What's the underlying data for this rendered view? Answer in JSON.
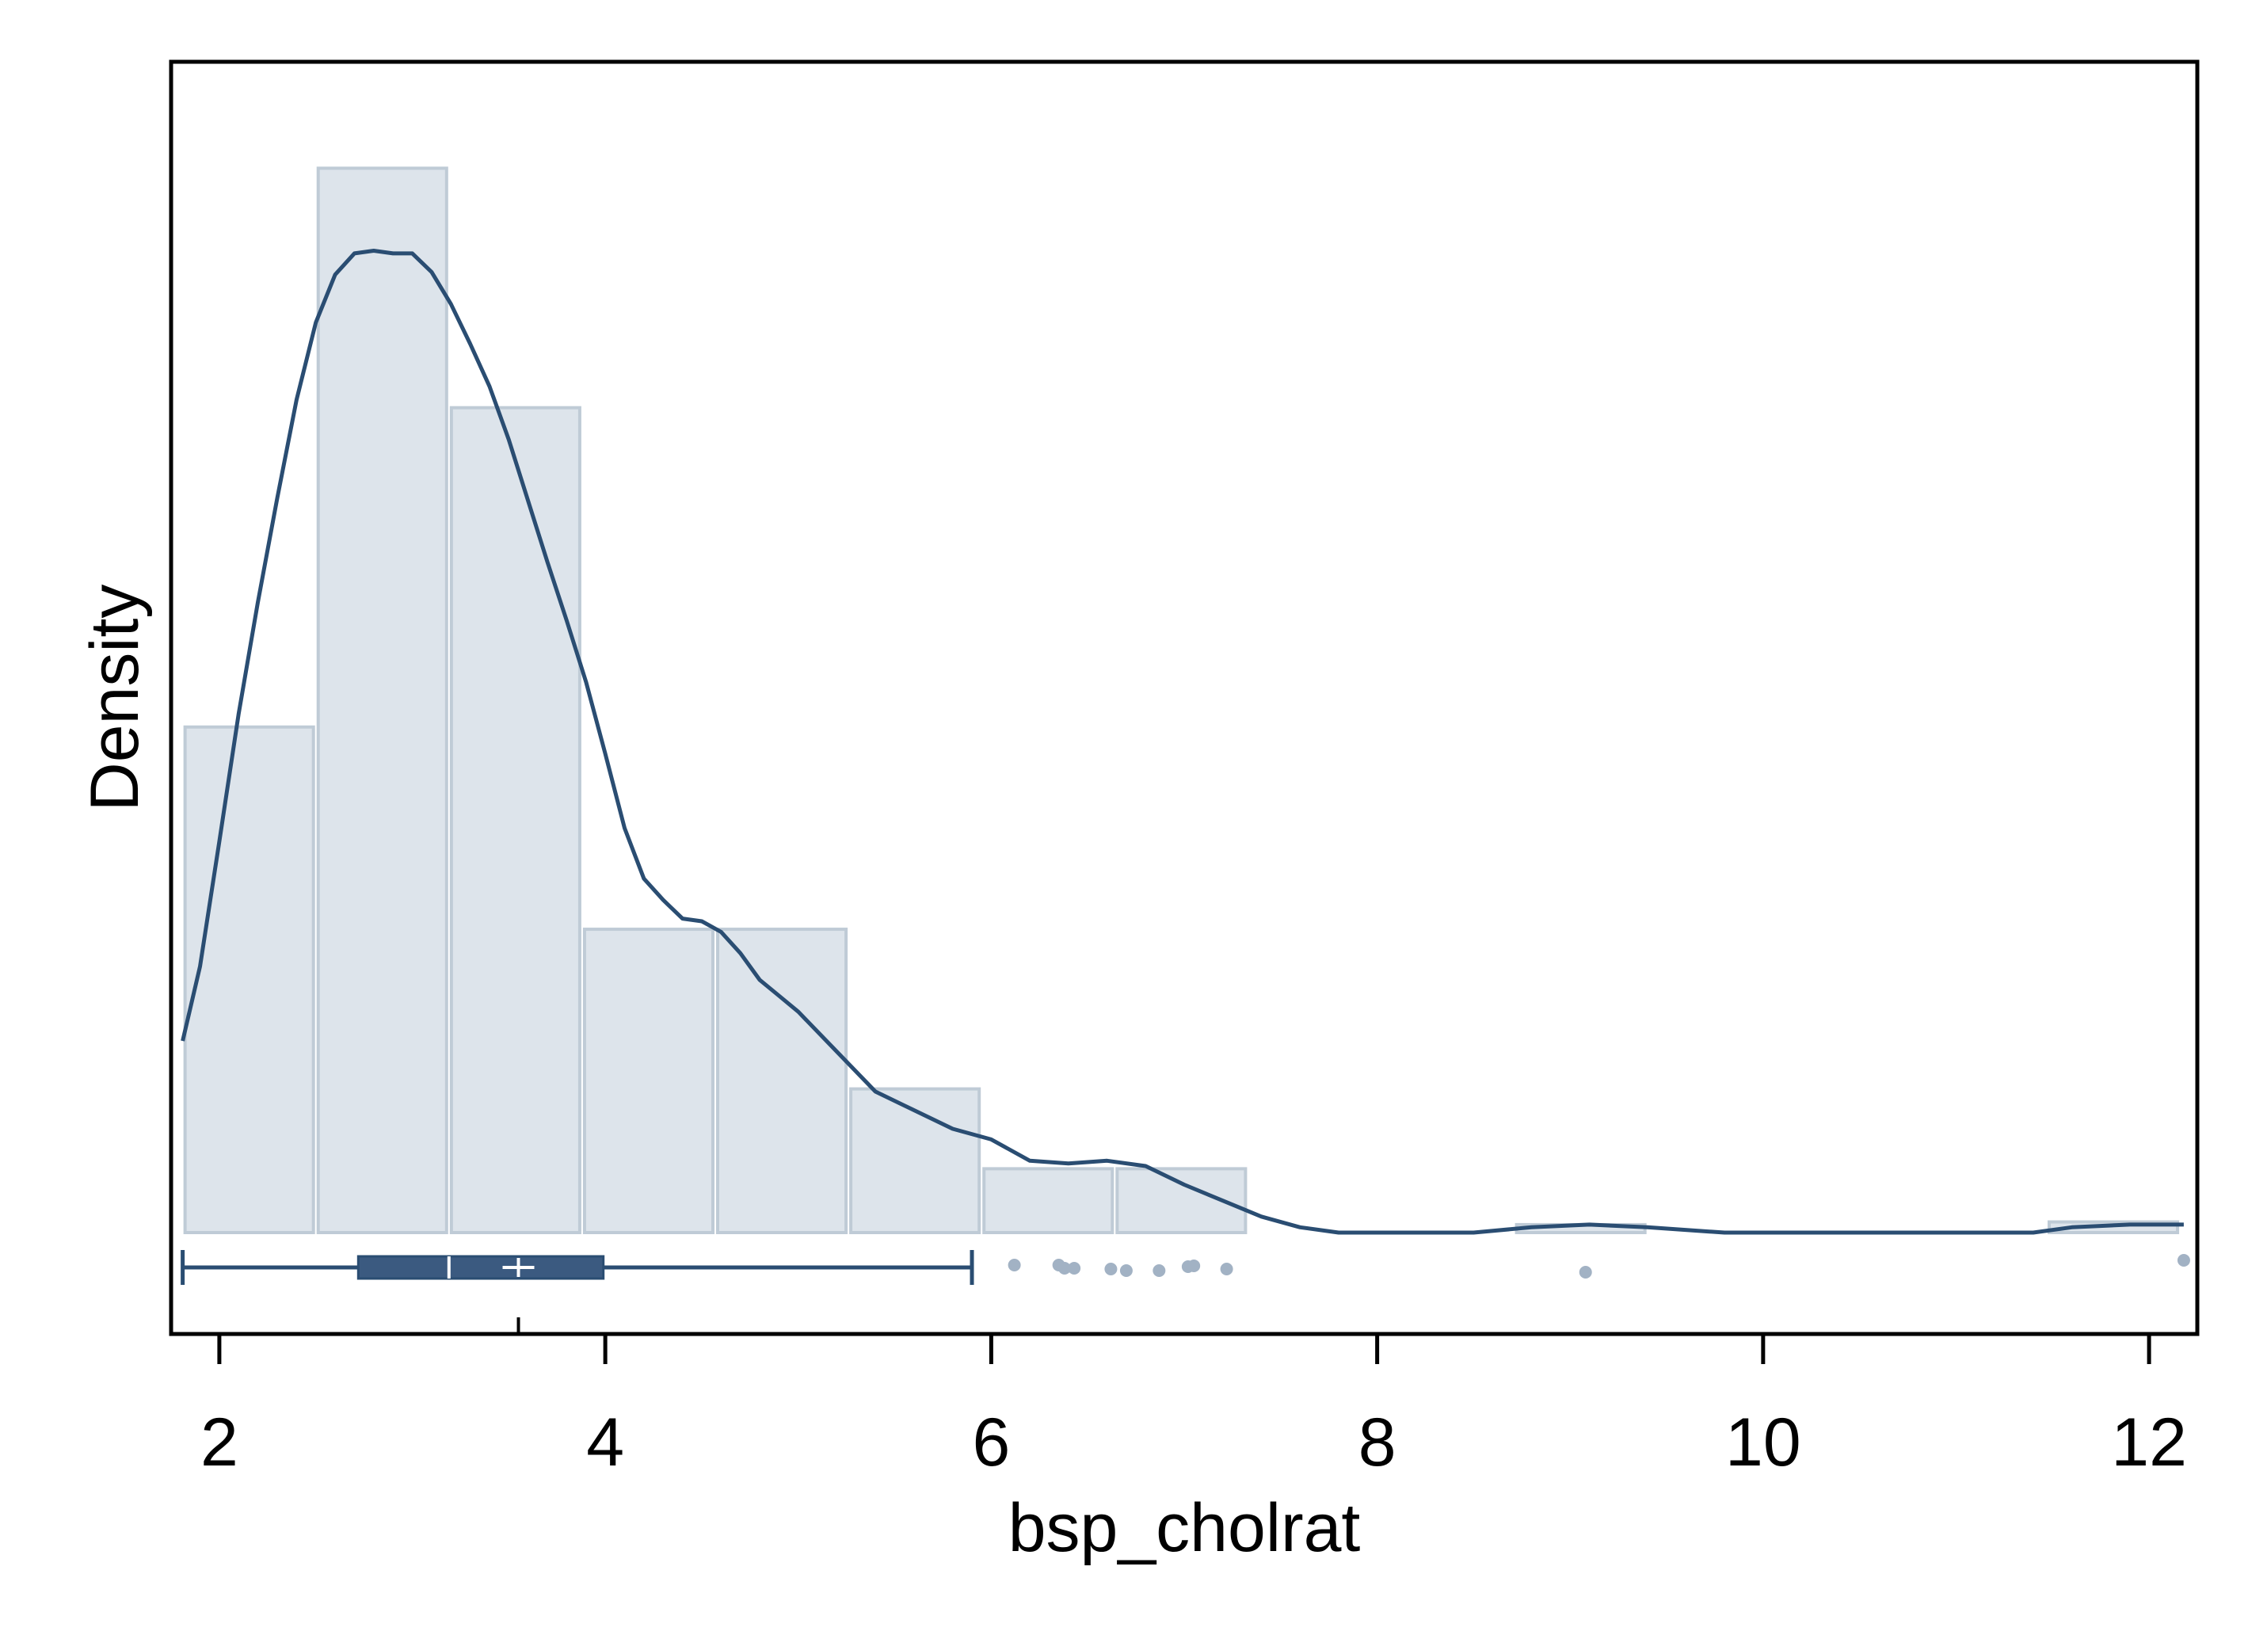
{
  "chart_data": {
    "type": "histogram",
    "xlabel": "bsp_cholrat",
    "ylabel": "Density",
    "xlim": [
      1.75,
      12.25
    ],
    "x_ticks": [
      2,
      4,
      6,
      8,
      10,
      12
    ],
    "x_tick_labels": [
      "2",
      "4",
      "6",
      "8",
      "10",
      "12"
    ],
    "y_ticks_shown": false,
    "grid": false,
    "histogram": {
      "bin_width": 0.69,
      "bins": [
        {
          "x0": 1.81,
          "x1": 2.5,
          "density": 0.19
        },
        {
          "x0": 2.5,
          "x1": 3.19,
          "density": 0.4
        },
        {
          "x0": 3.19,
          "x1": 3.88,
          "density": 0.31
        },
        {
          "x0": 3.88,
          "x1": 4.57,
          "density": 0.114
        },
        {
          "x0": 4.57,
          "x1": 5.26,
          "density": 0.114
        },
        {
          "x0": 5.26,
          "x1": 5.95,
          "density": 0.054
        },
        {
          "x0": 5.95,
          "x1": 6.64,
          "density": 0.024
        },
        {
          "x0": 6.64,
          "x1": 7.33,
          "density": 0.024
        },
        {
          "x0": 7.33,
          "x1": 8.02,
          "density": 0.0
        },
        {
          "x0": 8.02,
          "x1": 8.71,
          "density": 0.0
        },
        {
          "x0": 8.71,
          "x1": 9.4,
          "density": 0.003
        },
        {
          "x0": 9.4,
          "x1": 10.09,
          "density": 0.0
        },
        {
          "x0": 10.09,
          "x1": 10.78,
          "density": 0.0
        },
        {
          "x0": 10.78,
          "x1": 11.47,
          "density": 0.0
        },
        {
          "x0": 11.47,
          "x1": 12.16,
          "density": 0.004
        }
      ]
    },
    "density_curve": {
      "x": [
        1.81,
        1.9,
        2.0,
        2.1,
        2.2,
        2.3,
        2.4,
        2.5,
        2.6,
        2.7,
        2.8,
        2.9,
        3.0,
        3.1,
        3.2,
        3.3,
        3.4,
        3.5,
        3.6,
        3.7,
        3.8,
        3.9,
        4.0,
        4.1,
        4.2,
        4.3,
        4.4,
        4.5,
        4.6,
        4.7,
        4.8,
        4.9,
        5.0,
        5.2,
        5.4,
        5.6,
        5.8,
        6.0,
        6.2,
        6.4,
        6.6,
        6.8,
        7.0,
        7.2,
        7.4,
        7.6,
        7.8,
        8.0,
        8.2,
        8.5,
        8.8,
        9.1,
        9.4,
        9.8,
        10.2,
        10.6,
        11.0,
        11.4,
        11.6,
        11.9,
        12.18
      ],
      "y": [
        0.072,
        0.1,
        0.147,
        0.195,
        0.237,
        0.276,
        0.313,
        0.342,
        0.36,
        0.368,
        0.369,
        0.368,
        0.368,
        0.361,
        0.349,
        0.334,
        0.318,
        0.298,
        0.275,
        0.252,
        0.23,
        0.207,
        0.18,
        0.152,
        0.133,
        0.125,
        0.118,
        0.117,
        0.113,
        0.105,
        0.095,
        0.089,
        0.083,
        0.068,
        0.053,
        0.046,
        0.039,
        0.035,
        0.027,
        0.026,
        0.027,
        0.025,
        0.018,
        0.012,
        0.006,
        0.002,
        0.0,
        0.0,
        0.0,
        0.0,
        0.002,
        0.003,
        0.002,
        0.0,
        0.0,
        0.0,
        0.0,
        0.0,
        0.002,
        0.003,
        0.003
      ]
    },
    "y_max": 0.44,
    "boxplot": {
      "whisker_low": 1.81,
      "q1": 2.72,
      "median": 3.19,
      "q3": 3.99,
      "whisker_high": 5.9,
      "mean": 3.55,
      "outliers": [
        6.12,
        6.35,
        6.38,
        6.43,
        6.62,
        6.7,
        6.87,
        7.02,
        7.05,
        7.22,
        9.08,
        12.18
      ]
    },
    "marker_tick_x": 3.55,
    "colors": {
      "bar_fill": "#dde4eb",
      "bar_stroke": "#bfcbd6",
      "line": "#2a4d72",
      "box_fill": "#3b5a80",
      "outlier": "#a2b2c4"
    }
  }
}
